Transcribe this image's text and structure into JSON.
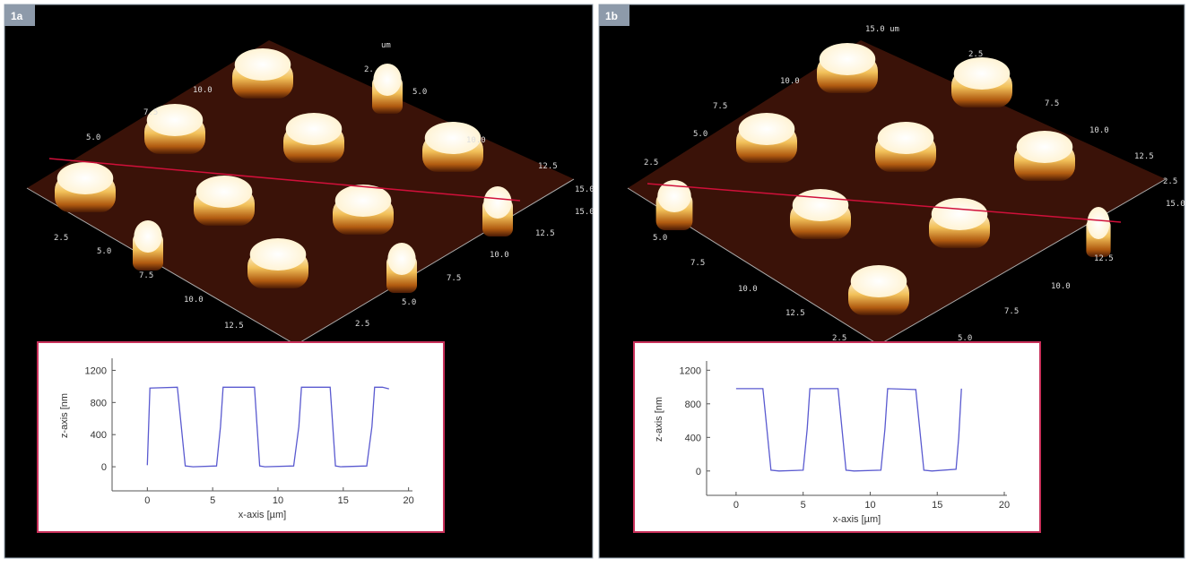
{
  "panels": [
    {
      "label": "1a",
      "surface_labels": [
        "2.5",
        "5.0",
        "7.5",
        "10.0",
        "12.5",
        "2.5",
        "5.0",
        "7.5",
        "10.0",
        "12.5",
        "15.0",
        "5.0",
        "7.5",
        "10.0",
        "um",
        "2.",
        "5.0",
        "10.0",
        "12.5",
        "15.0"
      ]
    },
    {
      "label": "1b",
      "surface_labels": [
        "15.0 um",
        "10.0",
        "7.5",
        "5.0",
        "2.5",
        "2.5",
        "7.5",
        "10.0",
        "12.5",
        "15.0",
        "2.5",
        "5.0",
        "7.5",
        "10.0",
        "12.5",
        "2.5",
        "5.0",
        "7.5",
        "10.0",
        "12.5"
      ]
    }
  ],
  "chart_data": [
    {
      "type": "line",
      "x_label": "x-axis [µm]",
      "y_label": "z-axis [nm",
      "color": "#5a5ad0",
      "x": [
        0,
        0.2,
        2.3,
        2.9,
        3.5,
        5.3,
        5.6,
        5.8,
        8.2,
        8.6,
        9.0,
        11.2,
        11.6,
        11.8,
        14.0,
        14.4,
        14.8,
        16.8,
        17.2,
        17.4,
        18.0,
        18.5
      ],
      "values": [
        20,
        980,
        990,
        10,
        0,
        10,
        500,
        990,
        990,
        10,
        0,
        10,
        500,
        990,
        990,
        10,
        0,
        10,
        500,
        990,
        990,
        970
      ],
      "xlim": [
        -2.7,
        20.3
      ],
      "ylim": [
        -300,
        1350
      ],
      "xticks": [
        0,
        5,
        10,
        15,
        20
      ],
      "yticks": [
        0,
        400,
        800,
        1200
      ]
    },
    {
      "type": "line",
      "x_label": "x-axis [µm]",
      "y_label": "z-axis [nm",
      "color": "#5a5ad0",
      "x": [
        0,
        2.0,
        2.6,
        3.2,
        5.0,
        5.3,
        5.5,
        7.6,
        8.2,
        8.8,
        10.8,
        11.1,
        11.3,
        13.4,
        14.0,
        14.6,
        16.4,
        16.6,
        16.8
      ],
      "values": [
        980,
        980,
        10,
        0,
        10,
        500,
        980,
        980,
        10,
        0,
        10,
        500,
        980,
        970,
        10,
        0,
        20,
        400,
        980
      ],
      "xlim": [
        -2.2,
        20.2
      ],
      "ylim": [
        -290,
        1310
      ],
      "xticks": [
        0,
        5,
        10,
        15,
        20
      ],
      "yticks": [
        0,
        400,
        800,
        1200
      ]
    }
  ]
}
